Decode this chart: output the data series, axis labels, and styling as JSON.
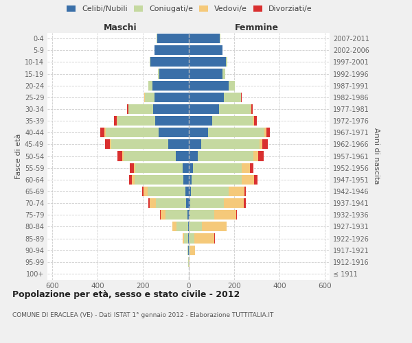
{
  "age_groups": [
    "100+",
    "95-99",
    "90-94",
    "85-89",
    "80-84",
    "75-79",
    "70-74",
    "65-69",
    "60-64",
    "55-59",
    "50-54",
    "45-49",
    "40-44",
    "35-39",
    "30-34",
    "25-29",
    "20-24",
    "15-19",
    "10-14",
    "5-9",
    "0-4"
  ],
  "birth_years": [
    "≤ 1911",
    "1912-1916",
    "1917-1921",
    "1922-1926",
    "1927-1931",
    "1932-1936",
    "1937-1941",
    "1942-1946",
    "1947-1951",
    "1952-1956",
    "1957-1961",
    "1962-1966",
    "1967-1971",
    "1972-1976",
    "1977-1981",
    "1982-1986",
    "1987-1991",
    "1992-1996",
    "1997-2001",
    "2002-2006",
    "2007-2011"
  ],
  "male": {
    "celibi": [
      0,
      0,
      1,
      2,
      3,
      5,
      12,
      15,
      22,
      25,
      55,
      90,
      130,
      145,
      155,
      148,
      158,
      128,
      168,
      148,
      138
    ],
    "coniugati": [
      0,
      1,
      4,
      18,
      50,
      95,
      130,
      165,
      215,
      210,
      230,
      250,
      235,
      168,
      108,
      45,
      18,
      6,
      2,
      1,
      1
    ],
    "vedovi": [
      0,
      0,
      1,
      5,
      18,
      22,
      28,
      18,
      12,
      6,
      6,
      5,
      5,
      3,
      2,
      1,
      1,
      0,
      0,
      0,
      0
    ],
    "divorziati": [
      0,
      0,
      0,
      0,
      1,
      3,
      6,
      6,
      12,
      18,
      22,
      22,
      18,
      12,
      6,
      2,
      1,
      1,
      0,
      0,
      0
    ]
  },
  "female": {
    "nubili": [
      0,
      0,
      2,
      3,
      3,
      5,
      8,
      10,
      15,
      20,
      40,
      55,
      85,
      105,
      135,
      155,
      175,
      148,
      165,
      148,
      138
    ],
    "coniugate": [
      0,
      2,
      6,
      22,
      55,
      108,
      148,
      168,
      218,
      215,
      245,
      258,
      248,
      178,
      138,
      75,
      28,
      12,
      6,
      2,
      1
    ],
    "vedove": [
      0,
      3,
      22,
      88,
      108,
      98,
      88,
      68,
      55,
      35,
      22,
      12,
      8,
      5,
      3,
      2,
      1,
      0,
      0,
      0,
      0
    ],
    "divorziate": [
      0,
      0,
      0,
      2,
      2,
      3,
      8,
      5,
      15,
      15,
      22,
      22,
      18,
      12,
      5,
      2,
      1,
      0,
      0,
      0,
      0
    ]
  },
  "colors": {
    "celibi": "#3a6fa8",
    "coniugati": "#c5d9a0",
    "vedovi": "#f5c97a",
    "divorziati": "#d93030"
  },
  "xlim": 620,
  "title": "Popolazione per età, sesso e stato civile - 2012",
  "subtitle": "COMUNE DI ERACLEA (VE) - Dati ISTAT 1° gennaio 2012 - Elaborazione TUTTITALIA.IT",
  "label_maschi": "Maschi",
  "label_femmine": "Femmine",
  "ylabel_left": "Fasce di età",
  "ylabel_right": "Anni di nascita",
  "bg_color": "#f0f0f0",
  "plot_bg_color": "#ffffff",
  "legend_labels": [
    "Celibi/Nubili",
    "Coniugati/e",
    "Vedovi/e",
    "Divorziati/e"
  ]
}
